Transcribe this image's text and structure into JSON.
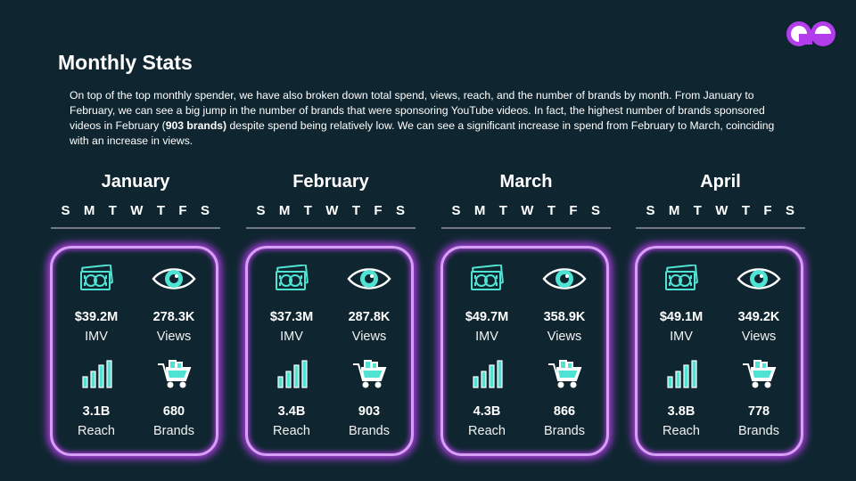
{
  "page": {
    "title": "Monthly Stats",
    "description": {
      "part1": "On top of the top monthly spender, we have also broken down total spend, views, reach, and the number of brands by month. From January to February, we can see a big jump in the number of brands that were sponsoring YouTube videos. In fact, the highest number of brands sponsored videos in February (",
      "bold": "903 brands)",
      "part2": " despite spend being relatively low. We can see a significant increase in spend from February to March, coinciding with an increase in views."
    }
  },
  "weekday_letters": [
    "S",
    "M",
    "T",
    "W",
    "T",
    "F",
    "S"
  ],
  "labels": {
    "imv": "IMV",
    "views": "Views",
    "reach": "Reach",
    "brands": "Brands"
  },
  "months": [
    {
      "name": "January",
      "imv": "$39.2M",
      "views": "278.3K",
      "reach": "3.1B",
      "brands": "680"
    },
    {
      "name": "February",
      "imv": "$37.3M",
      "views": "287.8K",
      "reach": "3.4B",
      "brands": "903"
    },
    {
      "name": "March",
      "imv": "$49.7M",
      "views": "358.9K",
      "reach": "4.3B",
      "brands": "866"
    },
    {
      "name": "April",
      "imv": "$49.1M",
      "views": "349.2K",
      "reach": "3.8B",
      "brands": "778"
    }
  ],
  "icons": {
    "imv": "money-icon",
    "views": "eye-icon",
    "reach": "bar-chart-icon",
    "brands": "shopping-cart-icon",
    "logo": "brand-logo-icon"
  },
  "colors": {
    "background": "#0f2630",
    "accent_teal": "#4fe3d3",
    "glow_purple": "#b33dea",
    "card_border": "#d7a0f5"
  }
}
